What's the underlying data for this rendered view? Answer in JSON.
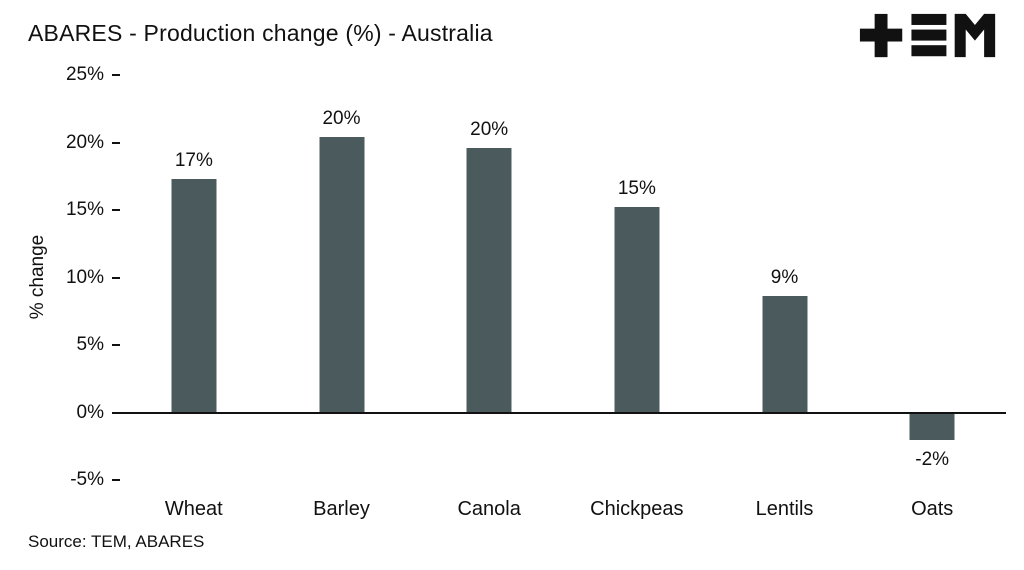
{
  "header": {
    "title": "ABARES - Production change (%) - Australia",
    "logo_name": "TEM"
  },
  "chart_data": {
    "type": "bar",
    "title": "ABARES - Production change (%) - Australia",
    "categories": [
      "Wheat",
      "Barley",
      "Canola",
      "Chickpeas",
      "Lentils",
      "Oats"
    ],
    "values": [
      17.3,
      20.4,
      19.6,
      15.2,
      8.6,
      -2
    ],
    "value_labels": [
      "17%",
      "20%",
      "20%",
      "15%",
      "9%",
      "-2%"
    ],
    "xlabel": "",
    "ylabel": "% change",
    "ylim": [
      -5,
      25
    ],
    "yticks": [
      25,
      20,
      15,
      10,
      5,
      0,
      -5
    ],
    "ytick_labels": [
      "25%",
      "20%",
      "15%",
      "10%",
      "5%",
      "0%",
      "-5%"
    ],
    "bar_color": "#4b5b5d",
    "axis_color": "#111111",
    "grid": false,
    "legend": false
  },
  "footer": {
    "source": "Source: TEM, ABARES"
  }
}
